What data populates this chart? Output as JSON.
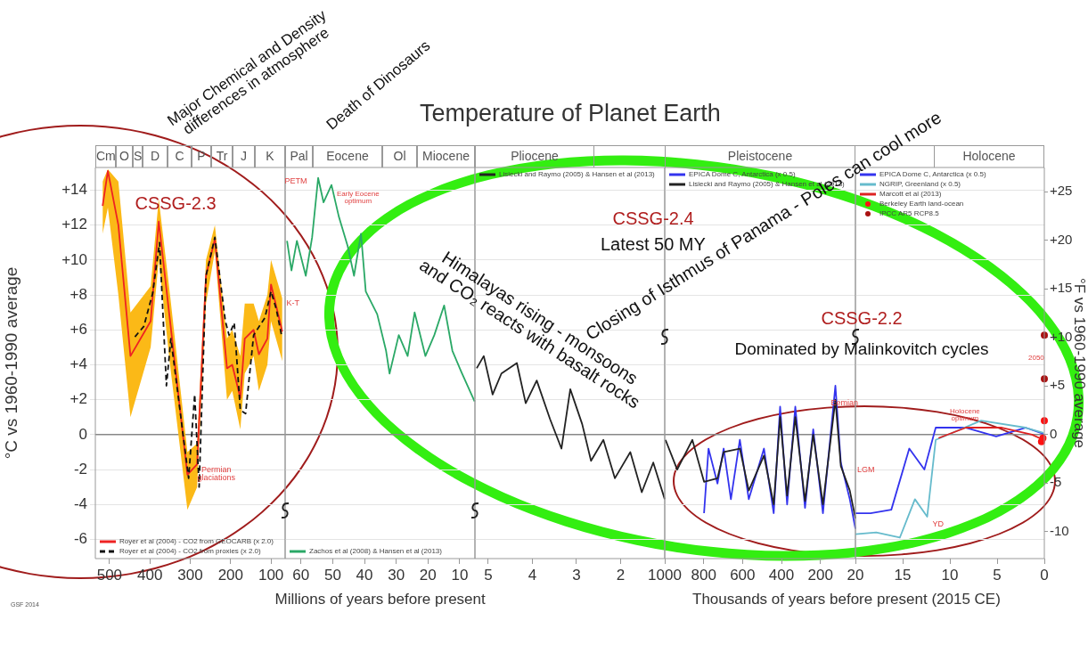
{
  "chart_data": [
    {
      "type": "line",
      "ylabel": "°C vs 1960-1990 average",
      "xlim": [
        535,
        65
      ],
      "xticks": [
        500,
        400,
        300,
        200,
        100
      ],
      "ylim": [
        -7.1,
        15.3
      ],
      "yticks": [
        -6,
        -4,
        -2,
        0,
        {
          "value": 2,
          "label": "+2"
        },
        {
          "value": 4,
          "label": "+4"
        },
        {
          "value": 6,
          "label": "+6"
        },
        {
          "value": 8,
          "label": "+8"
        },
        {
          "value": 10,
          "label": "+10"
        },
        {
          "value": 12,
          "label": "+12"
        },
        {
          "value": 14,
          "label": "+14"
        }
      ],
      "grid": "y",
      "legend": "bottom left",
      "marker": "none",
      "ref_lines": [
        {
          "axis": "y",
          "value": 0,
          "color": "#888888"
        }
      ],
      "annotations": [
        "Cm",
        "O",
        "S",
        "D",
        "C",
        "P",
        "Tr",
        "J",
        "K",
        "Major Chemical and Density\ndifferences in atmosphere",
        "Death of Dinosaurs",
        "CSSG-2.3",
        "Permian\nglaciations",
        "GSF 2014"
      ],
      "series": [
        {
          "name": "Royer et al (2004) - CO2 from GEOCARB (x 2.0)",
          "color": "#ee2222",
          "x": [
            517,
            504,
            478,
            448,
            398,
            378,
            350,
            307,
            283,
            261,
            239,
            209,
            196,
            176,
            165,
            143,
            130,
            109,
            100,
            72
          ],
          "values": [
            13.1,
            15.1,
            12.0,
            4.5,
            6.5,
            12.2,
            6.5,
            -2.3,
            -1.7,
            9.1,
            11.2,
            3.8,
            4.0,
            2.1,
            5.5,
            6.0,
            4.6,
            5.5,
            8.6,
            5.9
          ],
          "lower": [
            11.5,
            13.0,
            8.0,
            1.0,
            5.0,
            10.0,
            4.0,
            -4.3,
            -3.0,
            7.5,
            10.5,
            2.0,
            2.5,
            0.3,
            3.5,
            4.5,
            2.5,
            4.0,
            6.5,
            4.2
          ],
          "upper": [
            14.5,
            15.2,
            14.5,
            7.0,
            8.5,
            13.5,
            8.0,
            -1.0,
            -0.5,
            10.0,
            12.0,
            5.5,
            6.0,
            4.5,
            7.5,
            7.5,
            6.5,
            8.0,
            10.0,
            7.8
          ]
        },
        {
          "name": "Royer et al (2004) - CO2 from proxies (x 2.0)",
          "color": "#111111",
          "line_style": "dashed",
          "x": [
            437,
            415,
            393,
            376,
            359,
            348,
            304,
            289,
            278,
            261,
            239,
            213,
            204,
            191,
            176,
            163,
            143,
            115,
            100,
            87,
            74
          ],
          "values": [
            5.6,
            6.2,
            8.1,
            11.0,
            2.8,
            5.5,
            -2.5,
            2.3,
            -3.0,
            9.1,
            11.3,
            6.5,
            5.7,
            6.4,
            1.4,
            1.2,
            5.7,
            6.7,
            8.2,
            7.2,
            5.7
          ]
        }
      ]
    },
    {
      "type": "line",
      "xlabel": "Millions of years before present",
      "xlim": [
        65,
        5.2
      ],
      "xticks": [
        60,
        50,
        40,
        30,
        20,
        10
      ],
      "ylim": [
        -7.1,
        15.3
      ],
      "yticks": [
        -6,
        -4,
        -2,
        0,
        2,
        4,
        6,
        8,
        10,
        12,
        14
      ],
      "tick_labels": "x",
      "grid": "y",
      "legend": "bottom left",
      "marker": "none",
      "ref_lines": [
        {
          "axis": "y",
          "value": 0,
          "color": "#888888"
        }
      ],
      "annotations": [
        "Pal",
        "Eocene",
        "Ol",
        "Miocene",
        "PETM",
        "Early Eocene\noptimum",
        "K-T"
      ],
      "series": [
        {
          "name": "Zachos et al (2008) & Hansen et al (2013)",
          "color": "#2aa866",
          "x": [
            64.4,
            63.0,
            61.3,
            58.5,
            56.5,
            54.6,
            52.9,
            50.4,
            48.1,
            45.3,
            43.3,
            41.1,
            39.6,
            36.0,
            33.2,
            32.1,
            29.2,
            26.4,
            24.2,
            20.8,
            18.0,
            14.9,
            12.3,
            9.5,
            5.3
          ],
          "values": [
            11.1,
            9.4,
            11.1,
            9.1,
            11.3,
            14.7,
            13.3,
            14.3,
            12.5,
            10.8,
            9.1,
            11.5,
            8.2,
            6.9,
            4.8,
            3.5,
            5.7,
            4.5,
            7.0,
            4.5,
            5.7,
            7.4,
            4.8,
            3.6,
            1.9
          ]
        }
      ]
    },
    {
      "type": "line",
      "title": "Temperature of Planet Earth",
      "xlim": [
        5.3,
        1
      ],
      "xticks": [
        5,
        4,
        3,
        2
      ],
      "ylim": [
        -7.1,
        15.3
      ],
      "yticks": [
        -6,
        -4,
        -2,
        0,
        2,
        4,
        6,
        8,
        10,
        12,
        14
      ],
      "tick_labels": "x",
      "grid": "y",
      "legend": "top left",
      "marker": "none",
      "ref_lines": [
        {
          "axis": "y",
          "value": 0,
          "color": "#888888"
        }
      ],
      "annotations": [
        "Pliocene",
        "CSSG-2.4",
        "Latest 50 MY",
        "Himalayas rising - monsoons\nand CO₂ reacts with basalt rocks"
      ],
      "series": [
        {
          "name": "Lisiecki and Raymo (2005) & Hansen et al (2013)",
          "color": "#222222",
          "x": [
            5.26,
            5.1,
            4.9,
            4.7,
            4.35,
            4.15,
            3.9,
            3.6,
            3.34,
            3.14,
            2.87,
            2.67,
            2.39,
            2.13,
            1.78,
            1.52,
            1.26,
            1.0
          ],
          "values": [
            3.8,
            4.5,
            2.3,
            3.5,
            4.1,
            1.8,
            3.1,
            0.9,
            -0.8,
            2.6,
            0.6,
            -1.5,
            -0.3,
            -2.5,
            -1.0,
            -3.3,
            -1.6,
            -3.7
          ]
        }
      ]
    },
    {
      "type": "line",
      "xlim": [
        1000,
        20
      ],
      "xticks": [
        1000,
        800,
        600,
        400,
        200
      ],
      "ylim": [
        -7.1,
        15.3
      ],
      "yticks": [
        -6,
        -4,
        -2,
        0,
        2,
        4,
        6,
        8,
        10,
        12,
        14
      ],
      "tick_labels": "x",
      "grid": "y",
      "legend": "top left",
      "marker": "none",
      "ref_lines": [
        {
          "axis": "y",
          "value": 0,
          "color": "#888888"
        }
      ],
      "annotations": [
        "Pleistocene",
        "Closing of Isthmus of Panama - Poles can cool more",
        "Eemian"
      ],
      "series": [
        {
          "name": "EPICA Dome C, Antarctica (x 0.5)",
          "color": "#3333ee",
          "x": [
            798,
            775,
            729,
            697,
            660,
            614,
            568,
            490,
            440,
            407,
            371,
            329,
            279,
            237,
            187,
            123,
            95,
            49,
            20
          ],
          "values": [
            -4.5,
            -0.8,
            -2.8,
            -0.8,
            -3.7,
            -0.3,
            -3.7,
            -0.8,
            -4.5,
            1.6,
            -4.0,
            1.6,
            -4.2,
            0.3,
            -4.5,
            2.8,
            -1.6,
            -3.7,
            -5.4
          ]
        },
        {
          "name": "Lisiecki and Raymo (2005) & Hansen et al (2013)",
          "color": "#222222",
          "x": [
            996,
            936,
            858,
            798,
            729,
            697,
            614,
            568,
            490,
            440,
            407,
            371,
            329,
            279,
            237,
            187,
            123,
            95,
            49,
            20
          ],
          "values": [
            -0.3,
            -2.0,
            -0.3,
            -2.7,
            -2.5,
            -1.0,
            -0.8,
            -3.2,
            -1.2,
            -4.0,
            1.0,
            -3.5,
            1.0,
            -3.8,
            0.0,
            -4.0,
            2.0,
            -1.8,
            -3.2,
            -4.8
          ]
        }
      ]
    },
    {
      "type": "line",
      "xlabel": "Thousands of years before present (2015 CE)",
      "y2label": "°F vs 1960-1990 average",
      "xlim": [
        20,
        0
      ],
      "xticks": [
        20,
        15,
        10,
        5,
        0
      ],
      "ylim": [
        -7.1,
        15.3
      ],
      "yticks": [
        -6,
        -4,
        -2,
        0,
        2,
        4,
        6,
        8,
        10,
        12,
        14
      ],
      "y2lim": [
        -12.8,
        27.5
      ],
      "y2ticks": [
        {
          "value": -10,
          "label": "-10"
        },
        {
          "value": -5,
          "label": "-5"
        },
        {
          "value": 0,
          "label": "0"
        },
        {
          "value": 5,
          "label": "+5"
        },
        {
          "value": 10,
          "label": "+10"
        },
        {
          "value": 15,
          "label": "+15"
        },
        {
          "value": 20,
          "label": "+20"
        },
        {
          "value": 25,
          "label": "+25"
        }
      ],
      "tick_labels": "x",
      "grid": "y",
      "legend": "top left",
      "marker": "none",
      "ref_lines": [
        {
          "axis": "y",
          "value": 0,
          "color": "#888888"
        }
      ],
      "annotations": [
        "Holocene",
        "CSSG-2.2",
        "Dominated by Malinkovitch cycles",
        "LGM",
        "YD",
        "Holocene\noptimum",
        "2050"
      ],
      "series": [
        {
          "name": "EPICA Dome C, Antarctica (x 0.5)",
          "color": "#3333ee",
          "x": [
            20,
            18.4,
            16.2,
            14.3,
            12.7,
            11.5,
            8.3,
            5.1,
            2.0,
            0.1
          ],
          "values": [
            -4.5,
            -4.5,
            -4.3,
            -0.8,
            -2.0,
            0.4,
            0.4,
            -0.1,
            0.4,
            0.05
          ]
        },
        {
          "name": "NGRIP, Greenland (x 0.5)",
          "color": "#66bbcc",
          "x": [
            20,
            17.8,
            15.3,
            13.7,
            12.4,
            11.5,
            6.7,
            2.0,
            0.1
          ],
          "values": [
            -5.7,
            -5.6,
            -5.9,
            -3.7,
            -4.7,
            -0.3,
            0.8,
            0.4,
            0.1
          ]
        },
        {
          "name": "Marcott et al (2013)",
          "color": "#dd2222",
          "x": [
            11.2,
            8.3,
            4.5,
            1.3,
            0.1
          ],
          "values": [
            -0.2,
            0.4,
            0.4,
            0.0,
            -0.3
          ]
        },
        {
          "name": "Berkeley Earth land-ocean",
          "type": "scatter",
          "marker": "circle",
          "color": "#ff1111",
          "x": [
            0.3,
            0.15,
            0
          ],
          "values": [
            -0.4,
            -0.2,
            0.8
          ]
        },
        {
          "name": "IPCC AR5 RCP8.5",
          "type": "scatter",
          "marker": "circle",
          "color": "#aa1111",
          "x": [
            0,
            0
          ],
          "values": [
            3.2,
            5.7
          ]
        }
      ]
    }
  ]
}
